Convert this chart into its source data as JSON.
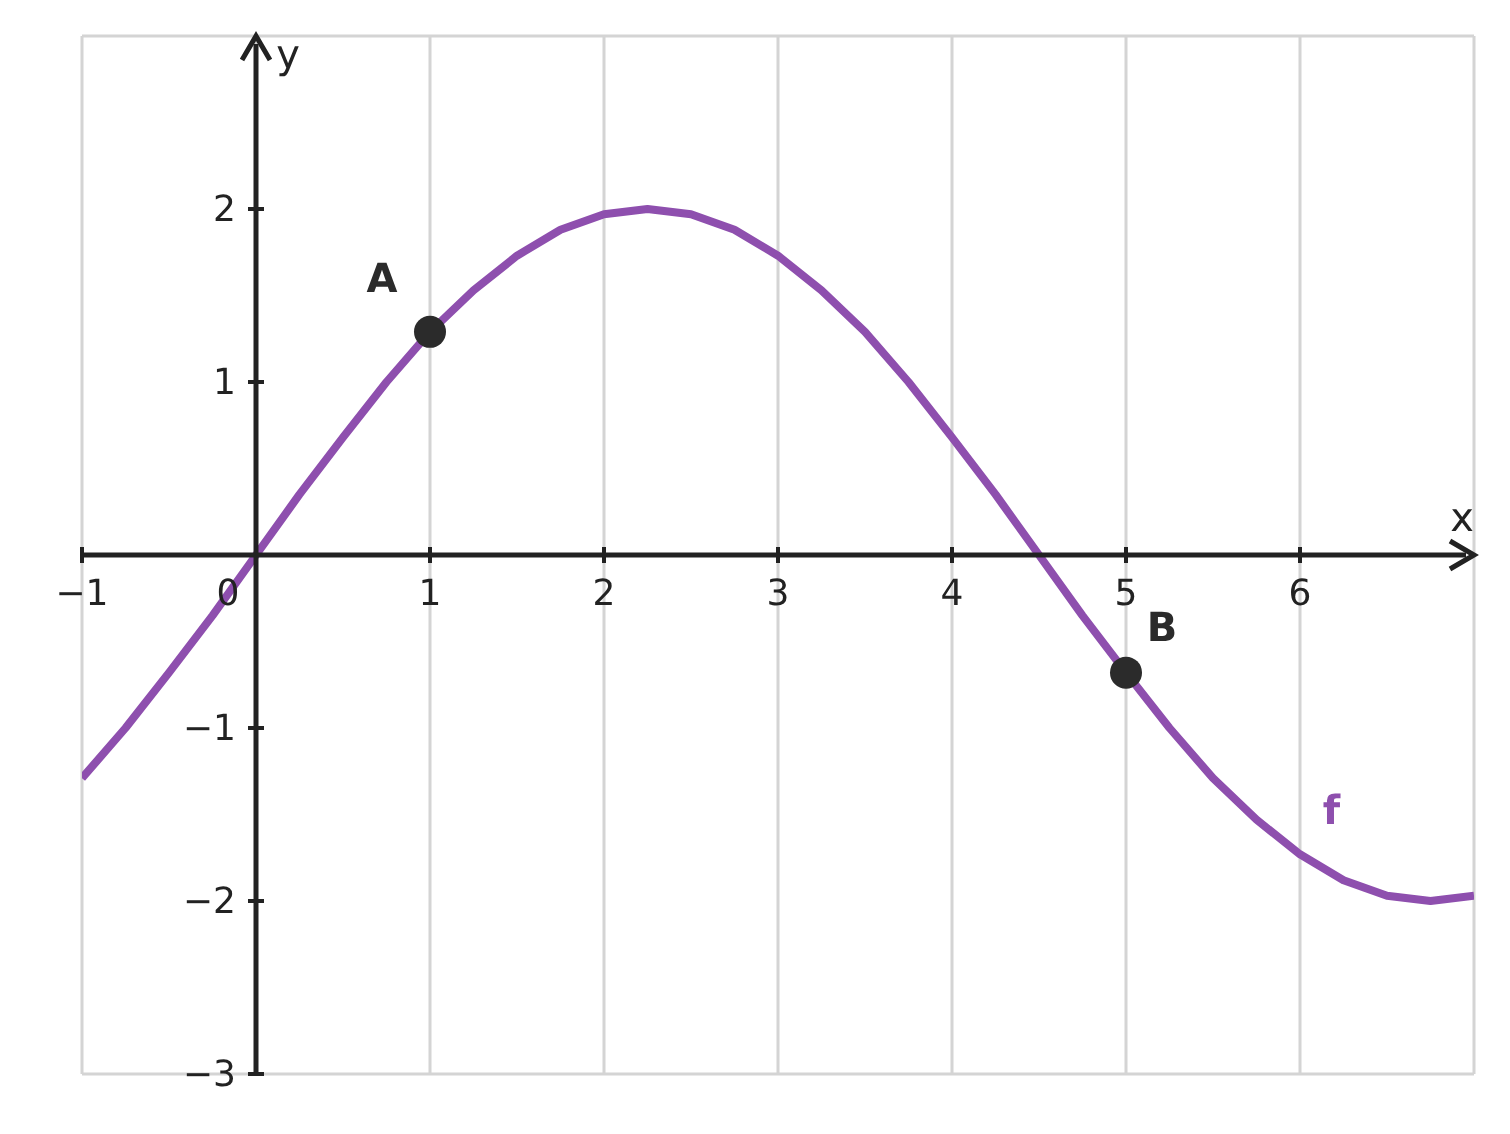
{
  "chart_data": {
    "type": "line",
    "xlabel": "x",
    "ylabel": "y",
    "xlim": [
      -1,
      7
    ],
    "ylim": [
      -3,
      3
    ],
    "xticks": [
      -1,
      0,
      1,
      2,
      3,
      4,
      5,
      6
    ],
    "yticks": [
      -3,
      -2,
      -1,
      1,
      2
    ],
    "grid": true,
    "legend": false,
    "series": [
      {
        "name": "f",
        "color": "#8e4fae",
        "marker": "none",
        "line_style": "solid",
        "x": [
          -1,
          -0.75,
          -0.5,
          -0.25,
          0,
          0.25,
          0.5,
          0.75,
          1,
          1.25,
          1.5,
          1.75,
          2,
          2.25,
          2.5,
          2.75,
          3,
          3.25,
          3.5,
          3.75,
          4,
          4.25,
          4.5,
          4.75,
          5,
          5.25,
          5.5,
          5.75,
          6,
          6.25,
          6.5,
          6.75,
          7
        ],
        "values": [
          -1.29,
          -1,
          -0.68,
          -0.35,
          0,
          0.35,
          0.68,
          1,
          1.29,
          1.53,
          1.73,
          1.88,
          1.97,
          2,
          1.97,
          1.88,
          1.73,
          1.53,
          1.29,
          1,
          0.68,
          0.35,
          0,
          -0.35,
          -0.68,
          -1,
          -1.29,
          -1.53,
          -1.73,
          -1.88,
          -1.97,
          -2,
          -1.97
        ]
      },
      {
        "type": "scatter",
        "color": "#2b2b2b",
        "marker": "circle",
        "x": [
          1,
          5
        ],
        "values": [
          1.29,
          -0.68
        ]
      }
    ],
    "annotations": [
      {
        "text": "A",
        "x": 1,
        "y": 1.29
      },
      {
        "text": "B",
        "x": 5,
        "y": -0.68
      }
    ]
  }
}
